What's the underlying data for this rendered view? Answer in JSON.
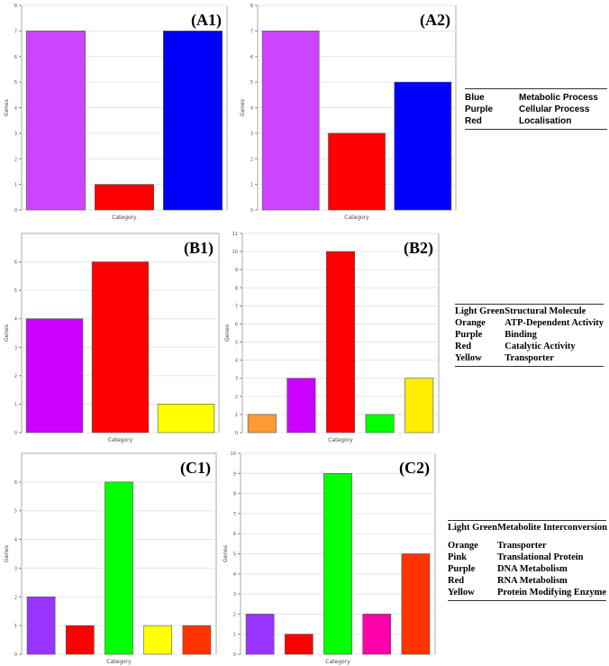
{
  "chart_data": [
    {
      "id": "A1",
      "panel_label": "(A1)",
      "type": "bar",
      "xlabel": "Category",
      "ylabel": "Genes",
      "ylim": [
        0,
        8
      ],
      "yticks": [
        "0",
        "1",
        "2",
        "3",
        "4",
        "5",
        "6",
        "7",
        "8"
      ],
      "values": [
        7,
        1,
        7
      ],
      "colors": [
        "#cc44ff",
        "#ff0000",
        "#0000ff"
      ]
    },
    {
      "id": "A2",
      "panel_label": "(A2)",
      "type": "bar",
      "xlabel": "Category",
      "ylabel": "Genes",
      "ylim": [
        0,
        8
      ],
      "yticks": [
        "0",
        "1",
        "2",
        "3",
        "4",
        "5",
        "6",
        "7",
        "8"
      ],
      "values": [
        7,
        3,
        5
      ],
      "colors": [
        "#cc44ff",
        "#ff0000",
        "#0000ff"
      ]
    },
    {
      "id": "B1",
      "panel_label": "(B1)",
      "type": "bar",
      "xlabel": "Category",
      "ylabel": "Genes",
      "ylim": [
        0,
        7
      ],
      "yticks": [
        "0",
        "1",
        "2",
        "3",
        "4",
        "5",
        "6"
      ],
      "values": [
        4,
        6,
        1
      ],
      "colors": [
        "#cc00ff",
        "#ff0000",
        "#ffff00"
      ]
    },
    {
      "id": "B2",
      "panel_label": "(B2)",
      "type": "bar",
      "xlabel": "Category",
      "ylabel": "Genes",
      "ylim": [
        0,
        11
      ],
      "yticks": [
        "0",
        "1",
        "2",
        "3",
        "4",
        "5",
        "6",
        "7",
        "8",
        "9",
        "10",
        "11"
      ],
      "values": [
        1,
        3,
        10,
        1,
        3
      ],
      "colors": [
        "#ff9933",
        "#cc00ff",
        "#ff0000",
        "#00ff00",
        "#ffee00"
      ]
    },
    {
      "id": "C1",
      "panel_label": "(C1)",
      "type": "bar",
      "xlabel": "Category",
      "ylabel": "Genes",
      "ylim": [
        0,
        7
      ],
      "yticks": [
        "0",
        "1",
        "2",
        "3",
        "4",
        "5",
        "6"
      ],
      "values": [
        2,
        1,
        6,
        1,
        1
      ],
      "colors": [
        "#9933ff",
        "#ff0000",
        "#00ff00",
        "#ffff00",
        "#ff3300"
      ]
    },
    {
      "id": "C2",
      "panel_label": "(C2)",
      "type": "bar",
      "xlabel": "Category",
      "ylabel": "Genes",
      "ylim": [
        0,
        10
      ],
      "yticks": [
        "0",
        "1",
        "2",
        "3",
        "4",
        "5",
        "6",
        "7",
        "8",
        "9",
        "10"
      ],
      "values": [
        2,
        1,
        9,
        2,
        5
      ],
      "colors": [
        "#9933ff",
        "#ff0000",
        "#00ff00",
        "#ff00aa",
        "#ff3300"
      ]
    }
  ],
  "legends": {
    "a": [
      {
        "key": "Blue",
        "value": "Metabolic Process"
      },
      {
        "key": "Purple",
        "value": "Cellular Process"
      },
      {
        "key": "Red",
        "value": "Localisation"
      }
    ],
    "b": [
      {
        "key": "Light Green",
        "value": "Structural Molecule"
      },
      {
        "key": "Orange",
        "value": "ATP-Dependent Activity"
      },
      {
        "key": "Purple",
        "value": "Binding"
      },
      {
        "key": "Red",
        "value": "Catalytic Activity"
      },
      {
        "key": "Yellow",
        "value": "Transporter"
      }
    ],
    "c": [
      {
        "key": "Light Green",
        "value": "Metabolite Interconversion"
      },
      {
        "key": "Orange",
        "value": "Transporter"
      },
      {
        "key": "Pink",
        "value": "Translational  Protein"
      },
      {
        "key": "Purple",
        "value": "DNA Metabolism"
      },
      {
        "key": "Red",
        "value": "RNA Metabolism"
      },
      {
        "key": "Yellow",
        "value": "Protein Modifying Enzyme"
      }
    ]
  }
}
